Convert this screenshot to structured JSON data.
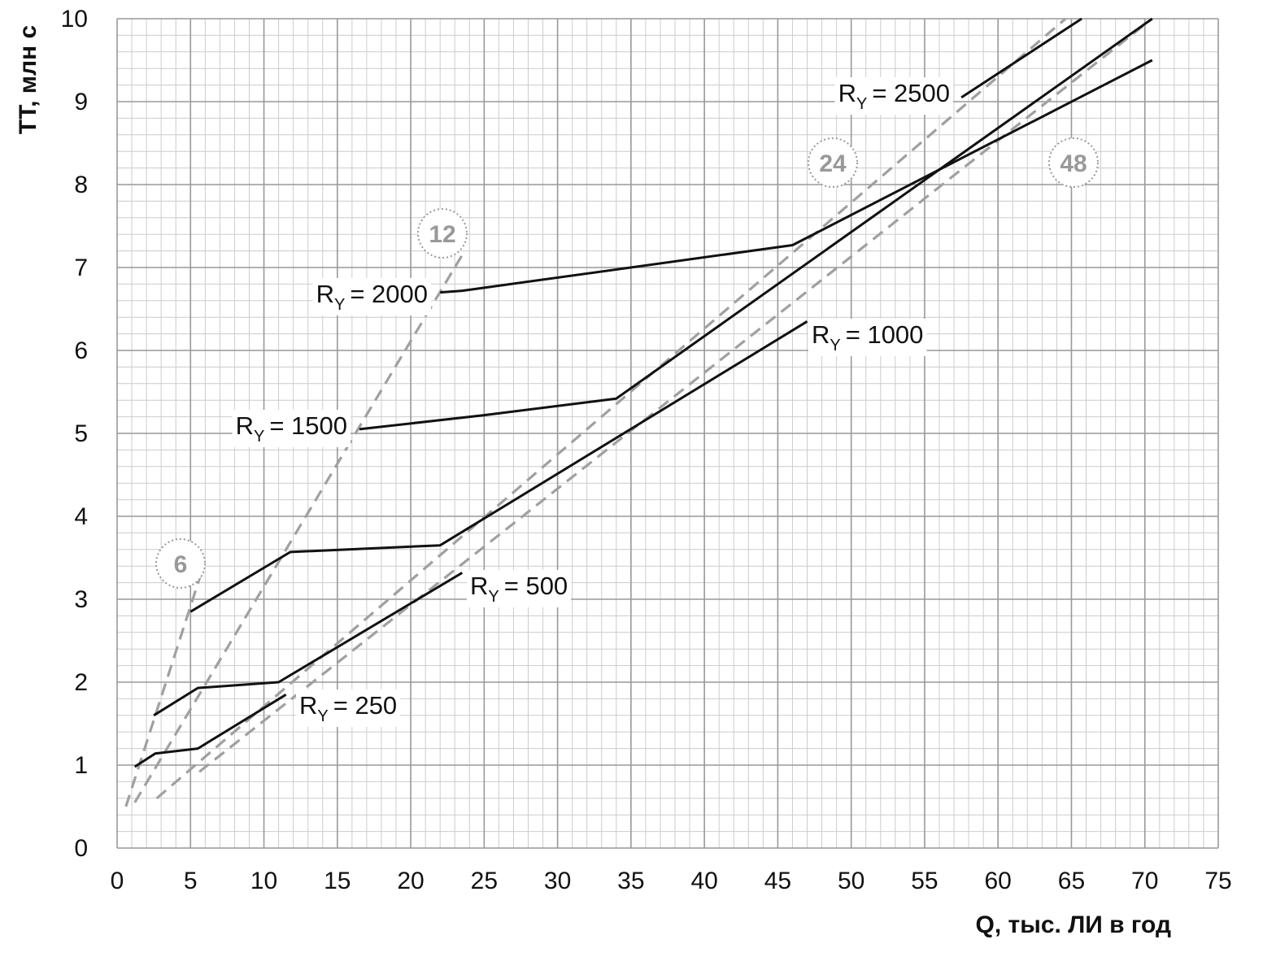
{
  "chart_data": {
    "type": "line",
    "xlabel": "Q, тыс. ЛИ в год",
    "ylabel": "TT, млн с",
    "xlim": [
      0,
      75
    ],
    "ylim": [
      0,
      10
    ],
    "grid": true,
    "x_ticks": [
      "0",
      "5",
      "10",
      "15",
      "20",
      "25",
      "30",
      "35",
      "40",
      "45",
      "50",
      "55",
      "60",
      "65",
      "70",
      "75"
    ],
    "y_ticks": [
      "0",
      "1",
      "2",
      "3",
      "4",
      "5",
      "6",
      "7",
      "8",
      "9",
      "10"
    ],
    "colors": {
      "series": "#111111",
      "reference": "#a0a0a0",
      "grid_major": "#999999",
      "grid_minor": "#cccccc"
    },
    "series": [
      {
        "label_main": "R",
        "label_sub": "Y",
        "label_value": "= 250",
        "points": [
          [
            1.2,
            0.98
          ],
          [
            2.6,
            1.14
          ],
          [
            5.5,
            1.2
          ],
          [
            11.5,
            1.85
          ]
        ]
      },
      {
        "label_main": "R",
        "label_sub": "Y",
        "label_value": "= 500",
        "points": [
          [
            2.5,
            1.6
          ],
          [
            5.5,
            1.93
          ],
          [
            11,
            2.0
          ],
          [
            23.5,
            3.32
          ]
        ]
      },
      {
        "label_main": "R",
        "label_sub": "Y",
        "label_value": "= 1000",
        "points": [
          [
            5,
            2.85
          ],
          [
            11.8,
            3.57
          ],
          [
            22,
            3.65
          ],
          [
            47,
            6.35
          ]
        ]
      },
      {
        "label_main": "R",
        "label_sub": "Y",
        "label_value": "= 1500",
        "points": [
          [
            16.5,
            5.05
          ],
          [
            25,
            5.22
          ],
          [
            34,
            5.42
          ],
          [
            70.5,
            10.0
          ]
        ]
      },
      {
        "label_main": "R",
        "label_sub": "Y",
        "label_value": "= 2000",
        "points": [
          [
            22,
            6.7
          ],
          [
            23.5,
            6.72
          ],
          [
            46,
            7.27
          ],
          [
            70.5,
            9.5
          ]
        ]
      },
      {
        "label_main": "R",
        "label_sub": "Y",
        "label_value": "= 2500",
        "points": [
          [
            57.5,
            9.05
          ],
          [
            65.7,
            10.0
          ]
        ]
      }
    ],
    "reference_lines": [
      {
        "label": "6",
        "points": [
          [
            0.6,
            0.5
          ],
          [
            5.7,
            3.3
          ]
        ]
      },
      {
        "label": "12",
        "points": [
          [
            1.2,
            0.55
          ],
          [
            23.5,
            7.15
          ]
        ]
      },
      {
        "label": "24",
        "points": [
          [
            2.7,
            0.6
          ],
          [
            64.6,
            10.0
          ]
        ]
      },
      {
        "label": "48",
        "points": [
          [
            5.6,
            0.92
          ],
          [
            70.5,
            10.0
          ]
        ]
      }
    ]
  }
}
